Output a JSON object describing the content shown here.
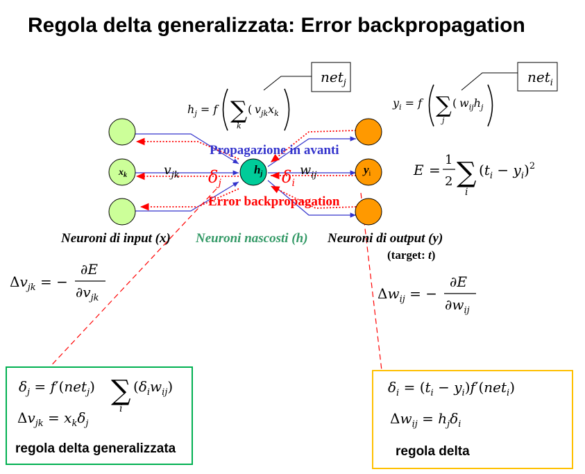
{
  "title": "Regola delta generalizzata: Error backpropagation",
  "net_labels": {
    "hidden_base": "net",
    "hidden_sub": "j",
    "output_base": "net",
    "output_sub": "i"
  },
  "formulas": {
    "hidden_activation": "h_j = f(Σ_k (v_jk x_k))",
    "output_activation": "y_i = f(Σ_j (w_ij h_j))",
    "error": "E = 1/2 Σ_i (t_i − y_i)²",
    "delta_v": "Δv_jk = −∂E/∂v_jk",
    "delta_w": "Δw_ij = −∂E/∂w_ij",
    "delta_j": "δ_j = f′(net_j) Σ_i (δ_i w_ij)",
    "delta_v_rule": "Δv_jk = x_k δ_j",
    "delta_i": "δ_i = (t_i − y_i) f′(net_i)",
    "delta_w_rule": "Δw_ij = h_j δ_i"
  },
  "nodes": {
    "input_label": "x",
    "input_sub": "k",
    "hidden_label": "h",
    "hidden_sub": "j",
    "output_label": "y",
    "output_sub": "i"
  },
  "weights": {
    "v": "v",
    "v_sub": "jk",
    "w": "w",
    "w_sub": "ij",
    "delta_j": "δ",
    "delta_j_sub": "j",
    "delta_i": "δ",
    "delta_i_sub": "i"
  },
  "flow_labels": {
    "forward": "Propagazione in avanti",
    "backward": "Error backpropagation"
  },
  "layer_labels": {
    "input": "Neuroni di input (x)",
    "hidden": "Neuroni nascosti (h)",
    "output": "Neuroni di output (y)",
    "target_prefix": "(target: ",
    "target_var": "t",
    "target_suffix": ")"
  },
  "boxes": {
    "generalized_caption": "regola delta generalizzata",
    "delta_caption": "regola delta"
  },
  "colors": {
    "input_node": "#ccff99",
    "hidden_node": "#00cc99",
    "output_node": "#ff9900",
    "forward": "#3333cc",
    "backward": "#ff0000",
    "hidden_label": "#339966",
    "box_green": "#00b050",
    "box_yellow": "#ffc000"
  }
}
